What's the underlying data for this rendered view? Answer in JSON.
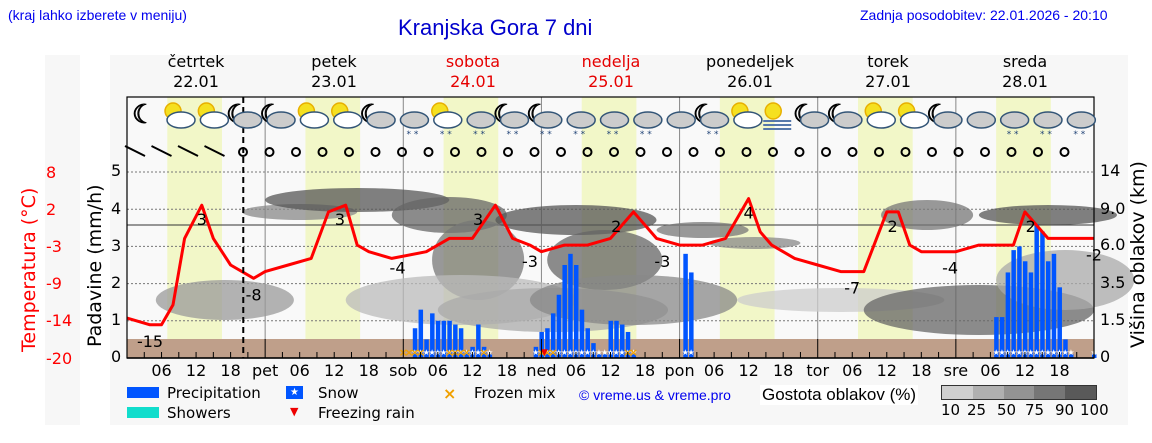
{
  "header": {
    "hint": "(kraj lahko izberete v meniju)",
    "title": "Kranjska Gora 7 dni",
    "updated": "Zadnja posodobitev: 22.01.2026 - 20:10"
  },
  "days": [
    {
      "name": "četrtek",
      "date": "22.01",
      "weekend": false
    },
    {
      "name": "petek",
      "date": "23.01",
      "weekend": false
    },
    {
      "name": "sobota",
      "date": "24.01",
      "weekend": true
    },
    {
      "name": "nedelja",
      "date": "25.01",
      "weekend": true
    },
    {
      "name": "ponedeljek",
      "date": "26.01",
      "weekend": false
    },
    {
      "name": "torek",
      "date": "27.01",
      "weekend": false
    },
    {
      "name": "sreda",
      "date": "28.01",
      "weekend": false
    }
  ],
  "axes": {
    "temp_label": "Temperatura (°C)",
    "temp_ticks": [
      "8",
      "2",
      "-3",
      "-9",
      "-14",
      "-20"
    ],
    "precip_label": "Padavine (mm/h)",
    "precip_ticks": [
      "5",
      "4",
      "3",
      "2",
      "1",
      "0"
    ],
    "cloud_label": "Višina oblakov (km)",
    "cloud_ticks": [
      "14",
      "9.0",
      "6.0",
      "3.5",
      "1.5",
      "0"
    ],
    "x_ticks": [
      "06",
      "12",
      "18",
      "pet",
      "06",
      "12",
      "18",
      "sob",
      "06",
      "12",
      "18",
      "ned",
      "06",
      "12",
      "18",
      "pon",
      "06",
      "12",
      "18",
      "tor",
      "06",
      "12",
      "18",
      "sre",
      "06",
      "12",
      "18"
    ]
  },
  "legend": {
    "precipitation": "Precipitation",
    "showers": "Showers",
    "snow": "Snow",
    "freezing_rain": "Freezing rain",
    "frozen_mix": "Frozen mix",
    "credit": "© vreme.us & vreme.pro",
    "cloud_density_label": "Gostota oblakov (%)",
    "cloud_density_ticks": [
      "10",
      "25",
      "50",
      "75",
      "90",
      "100"
    ]
  },
  "colors": {
    "precip": "#0055ff",
    "showers": "#11ddcc",
    "temp": "#ff0000",
    "frozen_mix": "#f0a000",
    "freezing_rain": "#ee0000",
    "ground": "#bf9f8a",
    "daylight": "#f2f7c8"
  },
  "icons": [
    "moon",
    "sun-cloud",
    "sun-cloud",
    "moon-cloud",
    "moon-cloud",
    "sun-cloud",
    "sun-cloud",
    "moon-cloud",
    "cloud-snow",
    "sun-cloud-snow",
    "cloud-snow",
    "moon-cloud-snow",
    "moon-cloud-snow",
    "cloud-snow",
    "cloud-snow",
    "cloud-snow",
    "cloud",
    "moon-cloud-snow",
    "sun-cloud",
    "sun-fog",
    "moon-cloud",
    "moon-cloud",
    "sun-cloud",
    "sun-cloud",
    "moon-cloud",
    "cloud",
    "cloud-snow",
    "cloud-snow",
    "cloud-snow"
  ],
  "chart_data": {
    "type": "line",
    "title": "Kranjska Gora 7 dni",
    "xlabel": "",
    "ylabel": "Padavine (mm/h)",
    "ylabel_left": "Temperatura (°C)",
    "ylabel_right": "Višina oblakov (km)",
    "ylim": [
      0,
      5
    ],
    "temp_ylim": [
      -20,
      8
    ],
    "grid": true,
    "x_hours_from_thu_00": [
      0,
      6,
      9,
      12,
      15,
      18,
      21,
      24,
      30,
      33,
      36,
      39,
      42,
      48,
      54,
      57,
      60,
      63,
      66,
      72,
      78,
      81,
      84,
      87,
      90,
      96,
      102,
      105,
      108,
      111,
      114,
      120,
      126,
      129,
      132,
      135,
      138,
      144,
      150,
      153,
      156,
      159,
      162,
      168
    ],
    "series": [
      {
        "name": "Temperatura (°C)",
        "type": "line",
        "color": "#ff0000",
        "x": [
          0,
          4,
          6,
          8,
          10,
          13,
          15,
          18,
          22,
          24,
          28,
          32,
          35,
          38,
          40,
          42,
          46,
          52,
          56,
          60,
          64,
          67,
          70,
          72,
          76,
          80,
          84,
          88,
          92,
          96,
          100,
          104,
          106,
          108,
          110,
          112,
          116,
          120,
          124,
          128,
          132,
          134,
          136,
          138,
          140,
          144,
          148,
          152,
          154,
          156,
          160,
          164,
          168
        ],
        "values": [
          -14,
          -15,
          -15,
          -12,
          -2,
          3,
          -2,
          -6,
          -8,
          -7,
          -6,
          -5,
          2,
          3,
          -3,
          -4,
          -5,
          -4,
          -2,
          -2,
          3,
          -2,
          -3,
          -4,
          -3,
          -3,
          -2,
          2,
          -2,
          -3,
          -3,
          -2,
          1,
          4,
          -1,
          -3,
          -5,
          -6,
          -7,
          -7,
          2,
          2,
          -3,
          -4,
          -4,
          -4,
          -3,
          -3,
          -3,
          2,
          -2,
          -2,
          -2
        ],
        "labels": [
          {
            "x": 13,
            "text": "3"
          },
          {
            "x": 4,
            "text": "-15"
          },
          {
            "x": 22,
            "text": "-8"
          },
          {
            "x": 37,
            "text": "3"
          },
          {
            "x": 47,
            "text": "-4"
          },
          {
            "x": 61,
            "text": "3"
          },
          {
            "x": 70,
            "text": "-3"
          },
          {
            "x": 85,
            "text": "2"
          },
          {
            "x": 93,
            "text": "-3"
          },
          {
            "x": 108,
            "text": "4"
          },
          {
            "x": 126,
            "text": "-7"
          },
          {
            "x": 133,
            "text": "2"
          },
          {
            "x": 143,
            "text": "-4"
          },
          {
            "x": 157,
            "text": "2"
          },
          {
            "x": 168,
            "text": "-2"
          }
        ]
      },
      {
        "name": "Precipitation (mm/h)",
        "type": "bar",
        "color": "#0055ff",
        "x": [
          50,
          51,
          52,
          53,
          54,
          55,
          56,
          57,
          58,
          59,
          60,
          61,
          62,
          63,
          71,
          72,
          73,
          74,
          75,
          76,
          77,
          78,
          79,
          80,
          81,
          82,
          83,
          84,
          85,
          86,
          87,
          88,
          97,
          98,
          151,
          152,
          153,
          154,
          155,
          156,
          157,
          158,
          159,
          160,
          161,
          162,
          163,
          164,
          168
        ],
        "values": [
          0.8,
          1.3,
          0.5,
          1.2,
          1.0,
          1.0,
          1.0,
          0.9,
          0.8,
          0.2,
          0.3,
          0.9,
          0.3,
          0.1,
          0.3,
          0.7,
          0.8,
          1.2,
          1.7,
          2.5,
          2.8,
          2.5,
          1.3,
          0.8,
          0.4,
          0.1,
          0.1,
          1.0,
          1.0,
          0.9,
          0.7,
          0.1,
          2.8,
          2.3,
          1.1,
          1.1,
          2.3,
          2.9,
          3.0,
          2.6,
          2.3,
          3.6,
          3.4,
          2.6,
          2.8,
          1.9,
          0.5,
          0.1,
          0.1
        ]
      }
    ],
    "precip_phase_markers": {
      "snow": "white star",
      "frozen_mix": "orange x",
      "freezing_rain": "red triangle"
    },
    "cloud_density_scale": [
      10,
      25,
      50,
      75,
      90,
      100
    ],
    "daylight_bands_hours": [
      [
        7,
        16.5
      ],
      [
        31,
        40.5
      ],
      [
        55,
        64.5
      ],
      [
        79,
        88.5
      ],
      [
        103,
        112.5
      ],
      [
        127,
        136.5
      ],
      [
        151,
        160.5
      ]
    ],
    "now_marker_hour": 20.2
  }
}
